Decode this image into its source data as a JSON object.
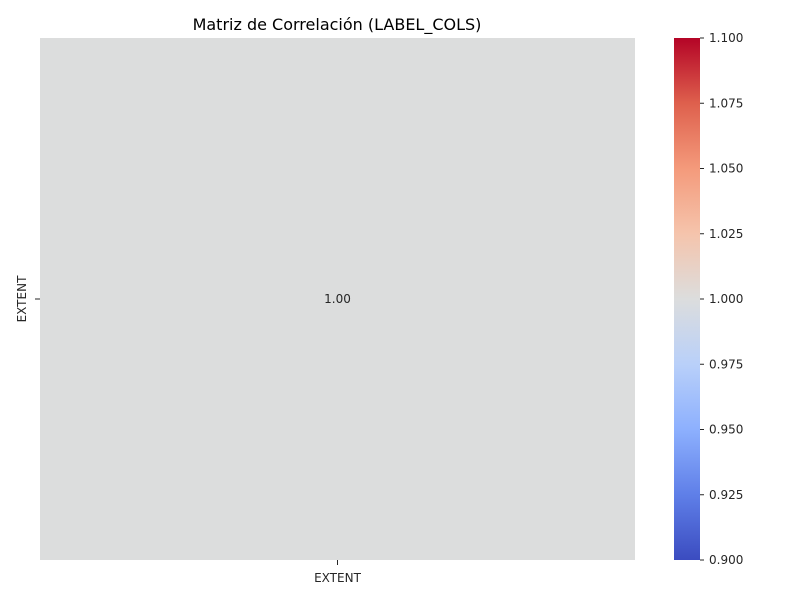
{
  "chart_data": {
    "type": "heatmap",
    "title": "Matriz de Correlación (LABEL_COLS)",
    "x_categories": [
      "EXTENT"
    ],
    "y_categories": [
      "EXTENT"
    ],
    "values": [
      [
        1.0
      ]
    ],
    "annotations": [
      [
        "1.00"
      ]
    ],
    "colormap": "coolwarm",
    "cell_color": "#dcdddd",
    "colorbar": {
      "vmin": 0.9,
      "vmax": 1.1,
      "ticks": [
        "0.900",
        "0.925",
        "0.950",
        "0.975",
        "1.000",
        "1.025",
        "1.050",
        "1.075",
        "1.100"
      ],
      "tick_values": [
        0.9,
        0.925,
        0.95,
        0.975,
        1.0,
        1.025,
        1.05,
        1.075,
        1.1
      ],
      "gradient_stops": [
        "#3b4cc0",
        "#5f7fe8",
        "#8db0fe",
        "#b9d0f9",
        "#dcdddd",
        "#f5c4ac",
        "#f49a7b",
        "#de604d",
        "#b40426"
      ],
      "position": "right"
    }
  }
}
